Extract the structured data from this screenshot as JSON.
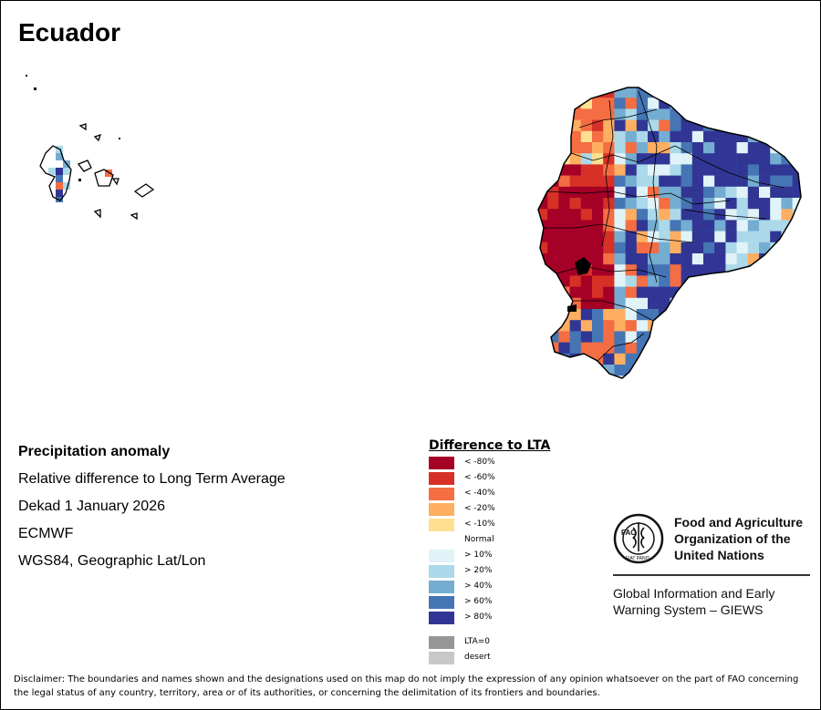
{
  "map": {
    "title": "Ecuador",
    "colors": {
      "lt80": "#a50026",
      "lt60": "#d73027",
      "lt40": "#f46d43",
      "lt20": "#fdae61",
      "lt10": "#fee090",
      "gt10": "#e0f3f8",
      "gt20": "#abd9e9",
      "gt40": "#74add1",
      "gt60": "#4575b4",
      "gt80": "#313695",
      "lta0": "#969696",
      "desert": "#c8c8c8"
    }
  },
  "info": {
    "heading": "Precipitation anomaly",
    "line1": "Relative difference to Long Term Average",
    "line2": "Dekad 1 January 2026",
    "line3": "ECMWF",
    "line4": "WGS84, Geographic Lat/Lon"
  },
  "legend": {
    "title": "Difference to LTA",
    "items": [
      {
        "label": "< -80%",
        "color": "#a50026"
      },
      {
        "label": "< -60%",
        "color": "#d73027"
      },
      {
        "label": "< -40%",
        "color": "#f46d43"
      },
      {
        "label": "< -20%",
        "color": "#fdae61"
      },
      {
        "label": "< -10%",
        "color": "#fee090"
      },
      {
        "label": "Normal",
        "color": ""
      },
      {
        "label": "> 10%",
        "color": "#e0f3f8"
      },
      {
        "label": "> 20%",
        "color": "#abd9e9"
      },
      {
        "label": "> 40%",
        "color": "#74add1"
      },
      {
        "label": "> 60%",
        "color": "#4575b4"
      },
      {
        "label": "> 80%",
        "color": "#313695"
      }
    ],
    "extra": [
      {
        "label": "LTA=0",
        "color": "#969696"
      },
      {
        "label": "desert",
        "color": "#c8c8c8"
      }
    ]
  },
  "fao": {
    "name_line1": "Food and Agriculture",
    "name_line2": "Organization of the",
    "name_line3": "United Nations",
    "giews_line1": "Global Information and Early",
    "giews_line2": "Warning System – GIEWS",
    "logo_text": "FAO",
    "logo_motto": "FIAT PANIS"
  },
  "disclaimer": "Disclaimer: The boundaries and names shown and the designations used on this map do not imply the expression of any opinion whatsoever on the part of FAO concerning the legal status of any country, territory, area or of its authorities, or concerning the delimitation of its frontiers and boundaries."
}
